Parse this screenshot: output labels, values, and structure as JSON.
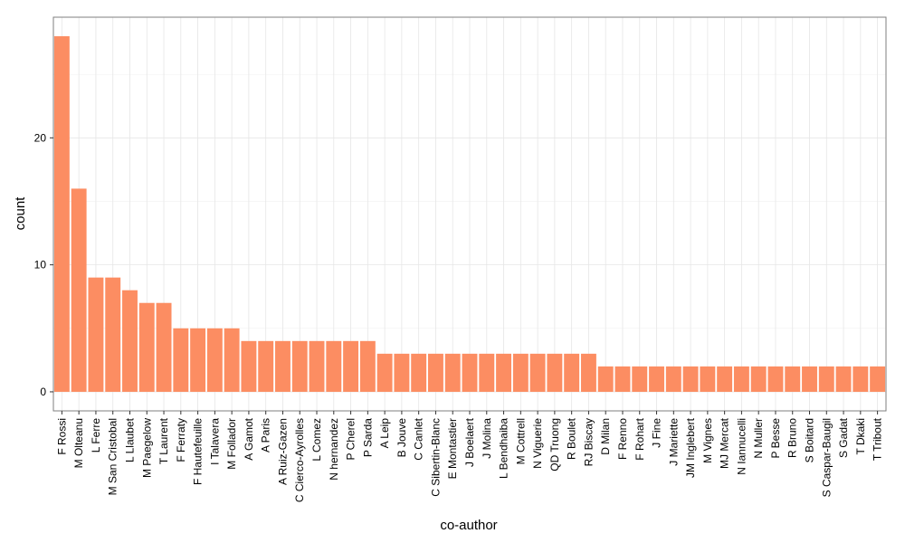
{
  "chart_data": {
    "type": "bar",
    "title": "",
    "xlabel": "co-author",
    "ylabel": "count",
    "ylim": [
      -1.5,
      29.5
    ],
    "yticks": [
      0,
      10,
      20
    ],
    "grid": true,
    "bar_color": "#FC8D62",
    "categories": [
      "F Rossi",
      "M Olteanu",
      "L Ferre",
      "M San Cristobal",
      "L Llaubet",
      "M Paegelow",
      "T Laurent",
      "F Ferraty",
      "F Hautefeuille",
      "I Talavera",
      "M Follador",
      "A Gamot",
      "A Paris",
      "A Ruiz-Gazen",
      "C Cierco-Ayrolles",
      "L Comez",
      "N hernandez",
      "P Cherel",
      "P Sarda",
      "A Leip",
      "B Jouve",
      "C Canlet",
      "C Sibertin-Blanc",
      "E Montastier",
      "J Boelaert",
      "J Molina",
      "L Bendhaiba",
      "M Cottrell",
      "N Viguerie",
      "QD Truong",
      "R Boulet",
      "RJ Biscay",
      "D Milan",
      "F Renno",
      "F Rohart",
      "J Fine",
      "J Mariette",
      "JM Inglebert",
      "M Vignes",
      "MJ Mercat",
      "N Iannucelli",
      "N Muller",
      "P Besse",
      "R Bruno",
      "S Boitard",
      "S Caspar-Baugil",
      "S Gadat",
      "T Dkaki",
      "T Tribout"
    ],
    "values": [
      28,
      16,
      9,
      9,
      8,
      7,
      7,
      5,
      5,
      5,
      5,
      4,
      4,
      4,
      4,
      4,
      4,
      4,
      4,
      3,
      3,
      3,
      3,
      3,
      3,
      3,
      3,
      3,
      3,
      3,
      3,
      3,
      2,
      2,
      2,
      2,
      2,
      2,
      2,
      2,
      2,
      2,
      2,
      2,
      2,
      2,
      2,
      2,
      2
    ]
  }
}
